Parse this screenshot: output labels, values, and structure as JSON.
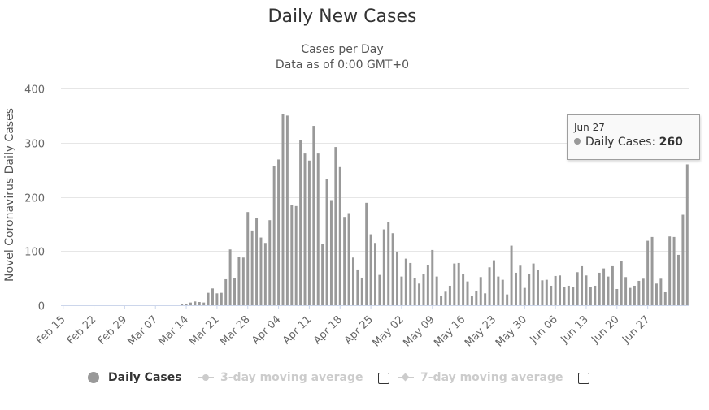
{
  "chart_data": {
    "type": "bar",
    "title": "Daily New Cases",
    "subtitle_line1": "Cases per Day",
    "subtitle_line2": "Data as of 0:00 GMT+0",
    "xlabel": "",
    "ylabel": "Novel Coronavirus Daily Cases",
    "ylim": [
      0,
      400
    ],
    "yticks": [
      0,
      100,
      200,
      300,
      400
    ],
    "ytick_labels": [
      "0",
      "100",
      "200",
      "300",
      "400"
    ],
    "grid": true,
    "xtick_labels": [
      "Feb 15",
      "Feb 22",
      "Feb 29",
      "Mar 07",
      "Mar 14",
      "Mar 21",
      "Mar 28",
      "Apr 04",
      "Apr 11",
      "Apr 18",
      "Apr 25",
      "May 02",
      "May 09",
      "May 16",
      "May 23",
      "May 30",
      "Jun 06",
      "Jun 13",
      "Jun 20",
      "Jun 27"
    ],
    "start_date": "Feb 15",
    "series": [
      {
        "name": "Daily Cases",
        "color": "#999999",
        "values": [
          0,
          0,
          0,
          0,
          0,
          0,
          0,
          0,
          0,
          0,
          0,
          0,
          0,
          0,
          0,
          0,
          0,
          0,
          0,
          0,
          0,
          0,
          0,
          0,
          0,
          0,
          0,
          3,
          3,
          5,
          7,
          6,
          5,
          23,
          31,
          22,
          23,
          48,
          103,
          50,
          89,
          88,
          172,
          138,
          161,
          125,
          115,
          157,
          257,
          269,
          353,
          350,
          185,
          183,
          305,
          280,
          267,
          331,
          280,
          113,
          233,
          194,
          292,
          255,
          163,
          170,
          88,
          66,
          51,
          189,
          131,
          115,
          56,
          140,
          153,
          133,
          99,
          53,
          86,
          78,
          50,
          40,
          57,
          74,
          102,
          53,
          18,
          25,
          36,
          77,
          78,
          57,
          44,
          17,
          27,
          52,
          22,
          70,
          83,
          53,
          47,
          20,
          110,
          60,
          73,
          32,
          57,
          77,
          65,
          46,
          47,
          36,
          54,
          55,
          33,
          36,
          33,
          61,
          72,
          55,
          34,
          36,
          60,
          68,
          53,
          72,
          30,
          82,
          52,
          32,
          36,
          45,
          49,
          119,
          126,
          40,
          49,
          24,
          127,
          126,
          93,
          167,
          260
        ]
      },
      {
        "name": "3-day moving average",
        "visible": false
      },
      {
        "name": "7-day moving average",
        "visible": false
      }
    ],
    "tooltip": {
      "date": "Jun 27",
      "series_name": "Daily Cases",
      "value": 260
    }
  },
  "tooltip": {
    "date": "Jun 27",
    "label": "Daily Cases:",
    "value": "260"
  },
  "legend": {
    "daily_cases": "Daily Cases",
    "three_day": "3-day moving average",
    "seven_day": "7-day moving average"
  },
  "colors": {
    "bar": "#999999",
    "grid": "#e6e6e6",
    "axis": "#ccd6eb",
    "legend_hidden": "#cccccc"
  }
}
